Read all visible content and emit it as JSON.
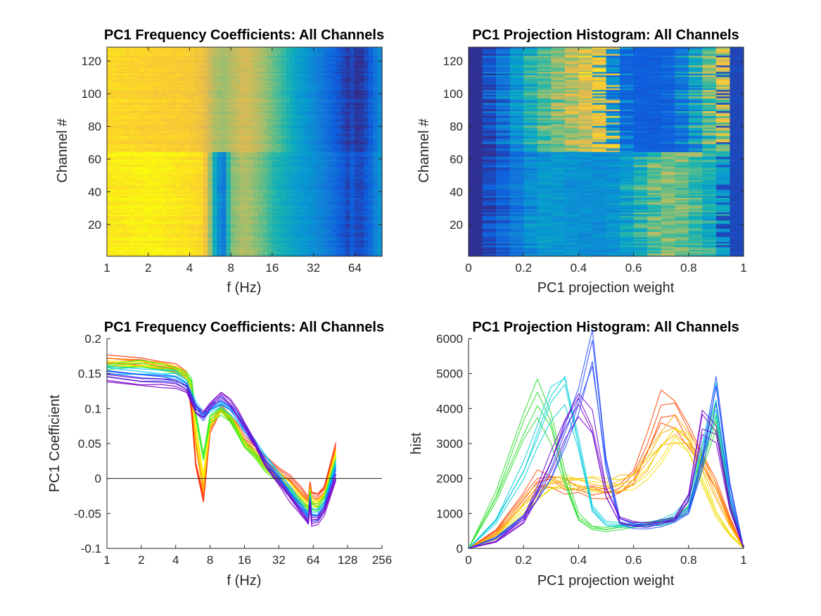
{
  "figure": {
    "panels": [
      {
        "id": "freq-heatmap",
        "title": "PC1 Frequency Coefficients: All Channels"
      },
      {
        "id": "proj-heatmap",
        "title": "PC1 Projection Histogram: All Channels"
      },
      {
        "id": "freq-lines",
        "title": "PC1 Frequency Coefficients: All Channels"
      },
      {
        "id": "proj-lines",
        "title": "PC1 Projection Histogram: All Channels"
      }
    ]
  },
  "chart_data": [
    {
      "type": "heatmap",
      "title": "PC1 Frequency Coefficients: All Channels",
      "xlabel": "f (Hz)",
      "ylabel": "Channel #",
      "x_scale": "log2",
      "xlim": [
        1,
        101
      ],
      "ylim": [
        1,
        128
      ],
      "x_ticks": [
        1,
        2,
        4,
        8,
        16,
        32,
        64
      ],
      "x_tick_labels": [
        "1",
        "2",
        "4",
        "8",
        "16",
        "32",
        "64"
      ],
      "y_ticks": [
        20,
        40,
        60,
        80,
        100,
        120
      ],
      "y_tick_labels": [
        "20",
        "40",
        "60",
        "80",
        "100",
        "120"
      ],
      "colormap": "parula",
      "profile_channels_1_64": {
        "f": [
          1,
          2,
          3,
          4,
          5,
          5.5,
          6,
          7,
          8,
          10,
          12,
          14,
          16,
          20,
          24,
          32,
          40,
          50,
          58,
          60,
          62,
          70,
          80,
          101
        ],
        "value": [
          0.16,
          0.165,
          0.16,
          0.155,
          0.15,
          0.11,
          0.04,
          -0.02,
          0.08,
          0.1,
          0.085,
          0.07,
          0.05,
          0.035,
          0.02,
          0.005,
          -0.01,
          -0.03,
          -0.045,
          -0.02,
          -0.04,
          -0.045,
          -0.03,
          0.02
        ]
      },
      "profile_channels_65_128": {
        "f": [
          1,
          2,
          3,
          4,
          5,
          6,
          7,
          8,
          10,
          12,
          14,
          16,
          20,
          24,
          32,
          40,
          50,
          58,
          60,
          62,
          70,
          80,
          101
        ],
        "value": [
          0.15,
          0.145,
          0.142,
          0.14,
          0.13,
          0.1,
          0.09,
          0.1,
          0.115,
          0.105,
          0.09,
          0.075,
          0.05,
          0.025,
          0.0,
          -0.02,
          -0.04,
          -0.055,
          -0.03,
          -0.055,
          -0.055,
          -0.04,
          0.01
        ]
      }
    },
    {
      "type": "heatmap",
      "title": "PC1 Projection Histogram: All Channels",
      "xlabel": "PC1 projection weight",
      "ylabel": "Channel #",
      "xlim": [
        0,
        1
      ],
      "ylim": [
        1,
        128
      ],
      "x_ticks": [
        0,
        0.2,
        0.4,
        0.6,
        0.8,
        1
      ],
      "x_tick_labels": [
        "0",
        "0.2",
        "0.4",
        "0.6",
        "0.8",
        "1"
      ],
      "y_ticks": [
        20,
        40,
        60,
        80,
        100,
        120
      ],
      "y_tick_labels": [
        "20",
        "40",
        "60",
        "80",
        "100",
        "120"
      ],
      "colormap": "parula",
      "bin_centers": [
        0.025,
        0.075,
        0.125,
        0.175,
        0.225,
        0.275,
        0.325,
        0.375,
        0.425,
        0.475,
        0.525,
        0.575,
        0.625,
        0.675,
        0.725,
        0.775,
        0.825,
        0.875,
        0.925,
        0.975
      ],
      "profile_channels_1_64": [
        100,
        400,
        800,
        1200,
        1700,
        2000,
        1900,
        1800,
        1700,
        1650,
        1700,
        2000,
        2600,
        3400,
        3900,
        3600,
        3100,
        2600,
        2000,
        400
      ],
      "profile_channels_65_128": [
        100,
        500,
        1200,
        2000,
        2800,
        3300,
        3800,
        4200,
        4600,
        5000,
        1800,
        800,
        700,
        700,
        800,
        1200,
        2400,
        3500,
        4600,
        400
      ]
    },
    {
      "type": "line",
      "title": "PC1 Frequency Coefficients: All Channels",
      "xlabel": "f (Hz)",
      "ylabel": "PC1 Coefficient",
      "x_scale": "log2",
      "xlim": [
        1,
        256
      ],
      "ylim": [
        -0.1,
        0.2
      ],
      "x_ticks": [
        1,
        2,
        4,
        8,
        16,
        32,
        64,
        128,
        256
      ],
      "x_tick_labels": [
        "1",
        "2",
        "4",
        "8",
        "16",
        "32",
        "64",
        "128",
        "256"
      ],
      "y_ticks": [
        -0.1,
        -0.05,
        0,
        0.05,
        0.1,
        0.15,
        0.2
      ],
      "y_tick_labels": [
        "-0.1",
        "-0.05",
        "0",
        "0.05",
        "0.1",
        "0.15",
        "0.2"
      ],
      "reference_line_y": 0,
      "series_count": 128,
      "series_colors": "hue gradient red → orange → yellow → green → cyan → blue → violet",
      "series": [
        {
          "color": "#ff2a00",
          "x": [
            1,
            2,
            3,
            4,
            5,
            5.5,
            6,
            7,
            8,
            10,
            12,
            14,
            16,
            20,
            24,
            32,
            40,
            50,
            58,
            60,
            62,
            70,
            80,
            101
          ],
          "y": [
            0.172,
            0.168,
            0.163,
            0.158,
            0.15,
            0.1,
            0.02,
            -0.028,
            0.07,
            0.1,
            0.085,
            0.072,
            0.055,
            0.042,
            0.028,
            0.012,
            0.0,
            -0.018,
            -0.03,
            -0.01,
            -0.022,
            -0.025,
            -0.015,
            0.045
          ]
        },
        {
          "color": "#ffaa00",
          "x": [
            1,
            2,
            3,
            4,
            5,
            5.5,
            6,
            7,
            8,
            10,
            12,
            14,
            16,
            20,
            24,
            32,
            40,
            50,
            58,
            60,
            62,
            70,
            80,
            101
          ],
          "y": [
            0.166,
            0.166,
            0.162,
            0.157,
            0.148,
            0.12,
            0.05,
            -0.015,
            0.075,
            0.1,
            0.087,
            0.07,
            0.052,
            0.038,
            0.022,
            0.007,
            -0.008,
            -0.025,
            -0.038,
            -0.015,
            -0.03,
            -0.035,
            -0.022,
            0.04
          ]
        },
        {
          "color": "#ffee00",
          "x": [
            1,
            2,
            3,
            4,
            5,
            5.5,
            6,
            7,
            8,
            10,
            12,
            14,
            16,
            20,
            24,
            32,
            40,
            50,
            58,
            60,
            62,
            70,
            80,
            101
          ],
          "y": [
            0.163,
            0.164,
            0.16,
            0.156,
            0.147,
            0.13,
            0.07,
            0.0,
            0.08,
            0.098,
            0.086,
            0.068,
            0.05,
            0.034,
            0.018,
            0.003,
            -0.012,
            -0.03,
            -0.04,
            -0.018,
            -0.034,
            -0.038,
            -0.026,
            0.035
          ]
        },
        {
          "color": "#33ee22",
          "x": [
            1,
            2,
            3,
            4,
            5,
            5.5,
            6,
            7,
            8,
            10,
            12,
            14,
            16,
            20,
            24,
            32,
            40,
            50,
            58,
            60,
            62,
            70,
            80,
            101
          ],
          "y": [
            0.16,
            0.163,
            0.159,
            0.155,
            0.146,
            0.138,
            0.09,
            0.03,
            0.085,
            0.097,
            0.085,
            0.066,
            0.048,
            0.032,
            0.015,
            -0.002,
            -0.018,
            -0.035,
            -0.045,
            -0.022,
            -0.04,
            -0.042,
            -0.03,
            0.025
          ]
        },
        {
          "color": "#00c8ff",
          "x": [
            1,
            2,
            3,
            4,
            5,
            6,
            7,
            8,
            10,
            12,
            14,
            16,
            20,
            24,
            32,
            40,
            50,
            58,
            60,
            62,
            70,
            80,
            101
          ],
          "y": [
            0.155,
            0.152,
            0.15,
            0.148,
            0.136,
            0.104,
            0.09,
            0.1,
            0.105,
            0.098,
            0.086,
            0.072,
            0.05,
            0.03,
            0.006,
            -0.015,
            -0.038,
            -0.052,
            -0.028,
            -0.05,
            -0.05,
            -0.036,
            0.02
          ]
        },
        {
          "color": "#1e50ff",
          "x": [
            1,
            2,
            3,
            4,
            5,
            6,
            7,
            8,
            10,
            12,
            14,
            16,
            20,
            24,
            32,
            40,
            50,
            58,
            60,
            62,
            70,
            80,
            101
          ],
          "y": [
            0.15,
            0.145,
            0.143,
            0.141,
            0.131,
            0.1,
            0.088,
            0.102,
            0.112,
            0.102,
            0.088,
            0.073,
            0.048,
            0.025,
            0.0,
            -0.022,
            -0.042,
            -0.058,
            -0.032,
            -0.056,
            -0.056,
            -0.042,
            0.01
          ]
        },
        {
          "color": "#7a00c8",
          "x": [
            1,
            2,
            3,
            4,
            5,
            6,
            7,
            8,
            10,
            12,
            14,
            16,
            20,
            24,
            32,
            40,
            50,
            58,
            60,
            62,
            70,
            80,
            101
          ],
          "y": [
            0.143,
            0.137,
            0.136,
            0.135,
            0.127,
            0.098,
            0.09,
            0.105,
            0.12,
            0.108,
            0.092,
            0.075,
            0.048,
            0.022,
            -0.005,
            -0.028,
            -0.048,
            -0.062,
            -0.035,
            -0.062,
            -0.06,
            -0.048,
            0.0
          ]
        }
      ]
    },
    {
      "type": "line",
      "title": "PC1 Projection Histogram: All Channels",
      "xlabel": "PC1 projection weight",
      "ylabel": "hist",
      "xlim": [
        0,
        1
      ],
      "ylim": [
        0,
        6000
      ],
      "x_ticks": [
        0,
        0.2,
        0.4,
        0.6,
        0.8,
        1
      ],
      "x_tick_labels": [
        "0",
        "0.2",
        "0.4",
        "0.6",
        "0.8",
        "1"
      ],
      "y_ticks": [
        0,
        1000,
        2000,
        3000,
        4000,
        5000,
        6000
      ],
      "y_tick_labels": [
        "0",
        "1000",
        "2000",
        "3000",
        "4000",
        "5000",
        "6000"
      ],
      "series_count": 128,
      "series_colors": "hue gradient red → orange → yellow → green → cyan → blue → violet",
      "series": [
        {
          "color": "#ff4400",
          "x": [
            0,
            0.1,
            0.2,
            0.25,
            0.3,
            0.35,
            0.4,
            0.45,
            0.5,
            0.55,
            0.6,
            0.65,
            0.7,
            0.75,
            0.8,
            0.85,
            0.9,
            0.95,
            1
          ],
          "y": [
            0,
            500,
            1500,
            2000,
            2000,
            1800,
            1700,
            1650,
            1600,
            1700,
            2000,
            3000,
            4000,
            3900,
            3200,
            2600,
            1800,
            800,
            0
          ]
        },
        {
          "color": "#ffaa00",
          "x": [
            0,
            0.1,
            0.2,
            0.25,
            0.3,
            0.35,
            0.4,
            0.45,
            0.5,
            0.55,
            0.6,
            0.65,
            0.7,
            0.75,
            0.8,
            0.85,
            0.9,
            0.95,
            1
          ],
          "y": [
            0,
            400,
            1300,
            1800,
            1900,
            1900,
            1850,
            1800,
            1800,
            1850,
            2000,
            2500,
            3200,
            3500,
            3200,
            2500,
            1600,
            700,
            0
          ]
        },
        {
          "color": "#eedd00",
          "x": [
            0,
            0.1,
            0.2,
            0.25,
            0.3,
            0.35,
            0.4,
            0.45,
            0.5,
            0.55,
            0.6,
            0.65,
            0.7,
            0.75,
            0.8,
            0.85,
            0.9,
            0.95,
            1
          ],
          "y": [
            0,
            300,
            1100,
            1500,
            1800,
            1900,
            1900,
            1850,
            1800,
            1800,
            1900,
            2300,
            2800,
            3300,
            3000,
            2000,
            1000,
            400,
            0
          ]
        },
        {
          "color": "#22dd22",
          "x": [
            0,
            0.1,
            0.2,
            0.25,
            0.3,
            0.35,
            0.4,
            0.45,
            0.5,
            0.55,
            0.6,
            0.65,
            0.7,
            0.75,
            0.8,
            0.85,
            0.9,
            0.95,
            1
          ],
          "y": [
            0,
            1500,
            3500,
            4300,
            3500,
            2000,
            900,
            600,
            550,
            600,
            650,
            700,
            750,
            850,
            1200,
            2500,
            3800,
            1200,
            0
          ]
        },
        {
          "color": "#00ccdd",
          "x": [
            0,
            0.1,
            0.2,
            0.25,
            0.3,
            0.35,
            0.4,
            0.45,
            0.5,
            0.55,
            0.6,
            0.65,
            0.7,
            0.75,
            0.8,
            0.85,
            0.9,
            0.95,
            1
          ],
          "y": [
            0,
            800,
            2200,
            3300,
            4200,
            4700,
            3000,
            1200,
            700,
            650,
            650,
            700,
            750,
            900,
            1300,
            2800,
            4300,
            1500,
            0
          ]
        },
        {
          "color": "#1e46ff",
          "x": [
            0,
            0.1,
            0.2,
            0.25,
            0.3,
            0.35,
            0.4,
            0.45,
            0.5,
            0.55,
            0.6,
            0.65,
            0.7,
            0.75,
            0.8,
            0.85,
            0.9,
            0.95,
            1
          ],
          "y": [
            0,
            300,
            900,
            1500,
            2200,
            3200,
            4300,
            5700,
            2500,
            800,
            650,
            650,
            700,
            800,
            1100,
            2600,
            4700,
            1800,
            0
          ]
        },
        {
          "color": "#7000cc",
          "x": [
            0,
            0.1,
            0.2,
            0.25,
            0.3,
            0.35,
            0.4,
            0.45,
            0.5,
            0.55,
            0.6,
            0.65,
            0.7,
            0.75,
            0.8,
            0.85,
            0.9,
            0.95,
            1
          ],
          "y": [
            0,
            200,
            800,
            1600,
            2500,
            3400,
            4200,
            3500,
            1600,
            800,
            700,
            700,
            750,
            850,
            1500,
            3700,
            3400,
            1200,
            0
          ]
        }
      ]
    }
  ]
}
